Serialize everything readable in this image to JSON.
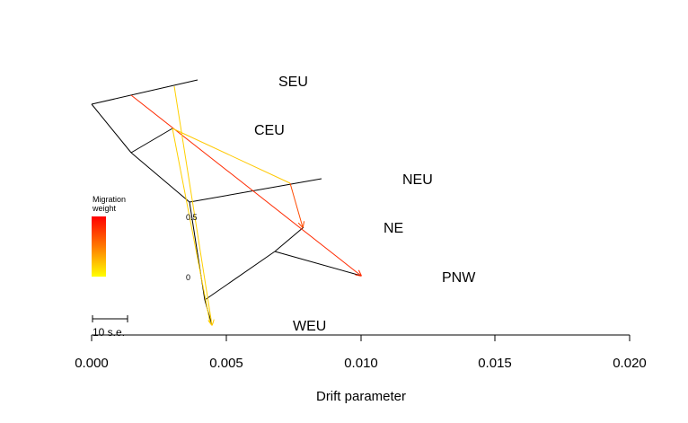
{
  "populations": {
    "seu": "SEU",
    "ceu": "CEU",
    "neu": "NEU",
    "ne": "NE",
    "pnw": "PNW",
    "weu": "WEU"
  },
  "axis": {
    "xlabel": "Drift parameter",
    "ticks": [
      "0.000",
      "0.005",
      "0.010",
      "0.015",
      "0.020"
    ]
  },
  "legend": {
    "title_line1": "Migration",
    "title_line2": "weight",
    "high_label": "0.5",
    "low_label": "0",
    "high_color": "#ff0000",
    "low_color": "#ffff00"
  },
  "scale_bar": {
    "label": "10 s.e."
  },
  "colors": {
    "tree": "#000000",
    "migration_red": "#ff2a00",
    "migration_orange": "#ff5a00",
    "migration_yellow": "#ffd000"
  }
}
